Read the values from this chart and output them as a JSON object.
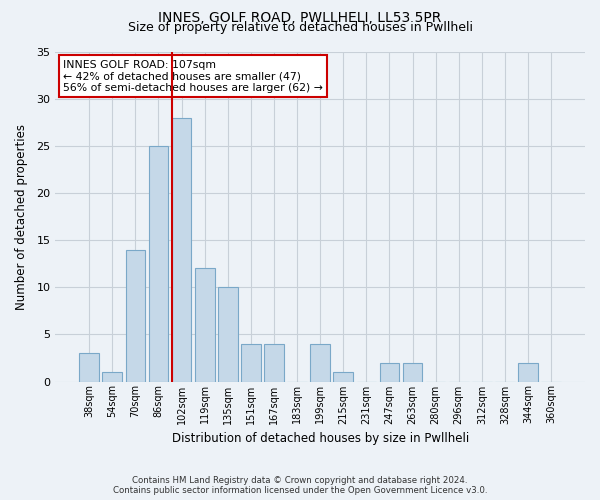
{
  "title1": "INNES, GOLF ROAD, PWLLHELI, LL53 5PR",
  "title2": "Size of property relative to detached houses in Pwllheli",
  "xlabel": "Distribution of detached houses by size in Pwllheli",
  "ylabel": "Number of detached properties",
  "footnote1": "Contains HM Land Registry data © Crown copyright and database right 2024.",
  "footnote2": "Contains public sector information licensed under the Open Government Licence v3.0.",
  "bin_labels": [
    "38sqm",
    "54sqm",
    "70sqm",
    "86sqm",
    "102sqm",
    "119sqm",
    "135sqm",
    "151sqm",
    "167sqm",
    "183sqm",
    "199sqm",
    "215sqm",
    "231sqm",
    "247sqm",
    "263sqm",
    "280sqm",
    "296sqm",
    "312sqm",
    "328sqm",
    "344sqm",
    "360sqm"
  ],
  "bar_values": [
    3,
    1,
    14,
    25,
    28,
    12,
    10,
    4,
    4,
    0,
    4,
    1,
    0,
    2,
    2,
    0,
    0,
    0,
    0,
    2,
    0
  ],
  "bar_color": "#c5d8e8",
  "bar_edge_color": "#7aa8c8",
  "grid_color": "#c8d0d8",
  "bg_color": "#edf2f7",
  "property_bin_index": 4,
  "annotation_text": "INNES GOLF ROAD: 107sqm\n← 42% of detached houses are smaller (47)\n56% of semi-detached houses are larger (62) →",
  "annotation_box_color": "#ffffff",
  "annotation_box_edge": "#cc0000",
  "vline_color": "#cc0000",
  "ylim": [
    0,
    35
  ],
  "yticks": [
    0,
    5,
    10,
    15,
    20,
    25,
    30,
    35
  ]
}
